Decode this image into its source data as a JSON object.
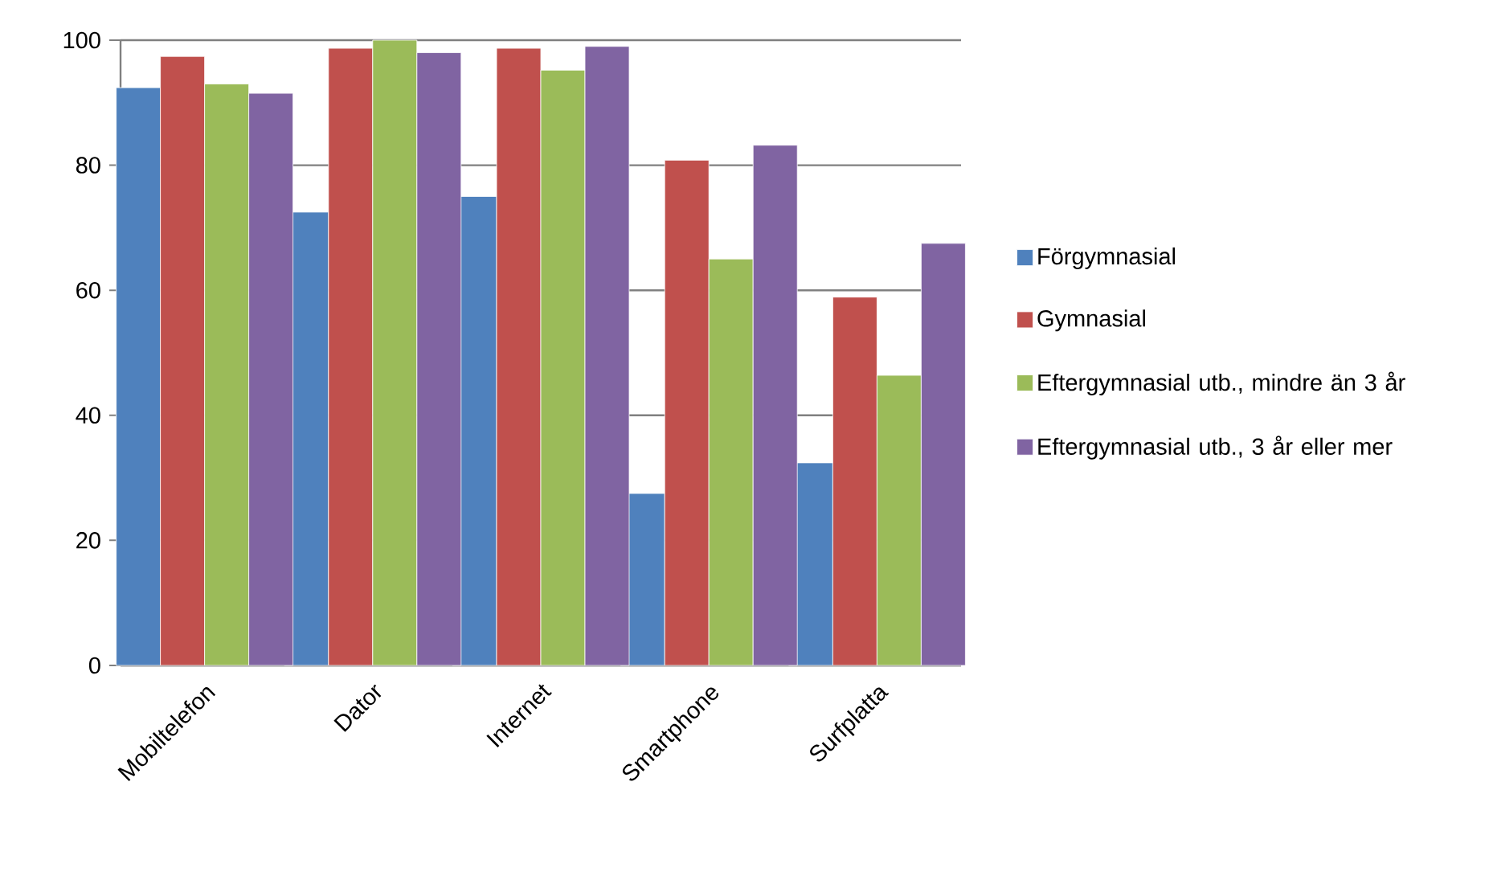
{
  "chart_data": {
    "type": "bar",
    "categories": [
      "Mobiltelefon",
      "Dator",
      "Internet",
      "Smartphone",
      "Surfplatta"
    ],
    "series": [
      {
        "name": "Förgymnasial",
        "color": "#4f81bd",
        "values": [
          92.4,
          72.5,
          75,
          27.5,
          32.4
        ]
      },
      {
        "name": "Gymnasial",
        "color": "#c0504d",
        "values": [
          97.4,
          98.7,
          98.7,
          80.8,
          58.9
        ]
      },
      {
        "name": "Eftergymnasial utb., mindre än 3 år",
        "color": "#9bbb59",
        "values": [
          93,
          100,
          95.2,
          65,
          46.4
        ]
      },
      {
        "name": "Eftergymnasial utb., 3 år eller mer",
        "color": "#8064a2",
        "values": [
          91.5,
          98,
          99,
          83.2,
          67.5
        ]
      }
    ],
    "ylim": [
      0,
      100
    ],
    "yticks": [
      0,
      20,
      40,
      60,
      80,
      100
    ],
    "grid": "y",
    "legend": "right"
  }
}
